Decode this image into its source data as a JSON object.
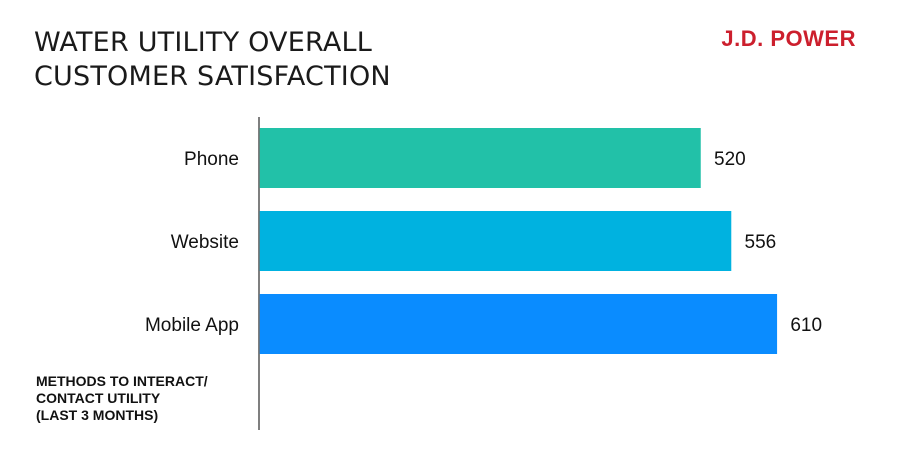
{
  "title_lines": [
    "WATER UTILITY OVERALL",
    "CUSTOMER SATISFACTION"
  ],
  "brand": "J.D. POWER",
  "brand_color": "#cc1f2d",
  "axis_title_lines": [
    "METHODS TO INTERACT/",
    "CONTACT UTILITY",
    "(LAST 3 MONTHS)"
  ],
  "chart_data": {
    "type": "bar",
    "orientation": "horizontal",
    "title": "WATER UTILITY OVERALL CUSTOMER SATISFACTION",
    "categories": [
      "Phone",
      "Website",
      "Mobile App"
    ],
    "values": [
      520,
      556,
      610
    ],
    "colors": [
      "#22c1a8",
      "#00b2e0",
      "#0a8cff"
    ],
    "ylabel": "METHODS TO INTERACT/ CONTACT UTILITY (LAST 3 MONTHS)",
    "xlabel": "",
    "grid": false,
    "legend": "none"
  }
}
